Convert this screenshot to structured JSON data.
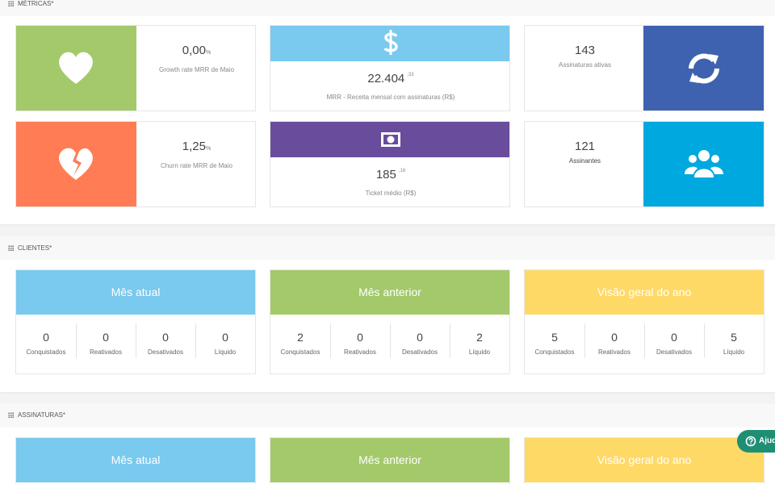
{
  "metrics": {
    "title": "MÉTRICAS*",
    "cards": [
      {
        "value": "0,00",
        "unit": "%",
        "caption": "Growth rate MRR de Maio"
      },
      {
        "value": "22.404",
        "cents": ",33",
        "caption": "MRR - Receita mensal com assinaturas (R$)"
      },
      {
        "value": 143,
        "caption": "Assinaturas ativas"
      },
      {
        "value": "1,25",
        "unit": "%",
        "caption": "Churn rate MRR de Maio"
      },
      {
        "value": 185,
        "cents": ",16",
        "caption": "Ticket médio (R$)"
      },
      {
        "value": 121,
        "caption": "Assinantes"
      }
    ]
  },
  "clientes": {
    "title": "CLIENTES*",
    "cards": [
      {
        "title": "Mês atual",
        "stats": [
          {
            "value": 0,
            "label": "Conquistados"
          },
          {
            "value": 0,
            "label": "Reativados"
          },
          {
            "value": 0,
            "label": "Desativados"
          },
          {
            "value": 0,
            "label": "Líquido"
          }
        ]
      },
      {
        "title": "Mês anterior",
        "stats": [
          {
            "value": 2,
            "label": "Conquistados"
          },
          {
            "value": 0,
            "label": "Reativados"
          },
          {
            "value": 0,
            "label": "Desativados"
          },
          {
            "value": 2,
            "label": "Líquido"
          }
        ]
      },
      {
        "title": "Visão geral do ano",
        "stats": [
          {
            "value": 5,
            "label": "Conquistados"
          },
          {
            "value": 0,
            "label": "Reativados"
          },
          {
            "value": 0,
            "label": "Desativados"
          },
          {
            "value": 5,
            "label": "Líquido"
          }
        ]
      }
    ]
  },
  "assinaturas": {
    "title": "ASSINATURAS*",
    "cards": [
      {
        "title": "Mês atual"
      },
      {
        "title": "Mês anterior"
      },
      {
        "title": "Visão geral do ano"
      }
    ]
  },
  "help": {
    "label": "Ajuda"
  }
}
